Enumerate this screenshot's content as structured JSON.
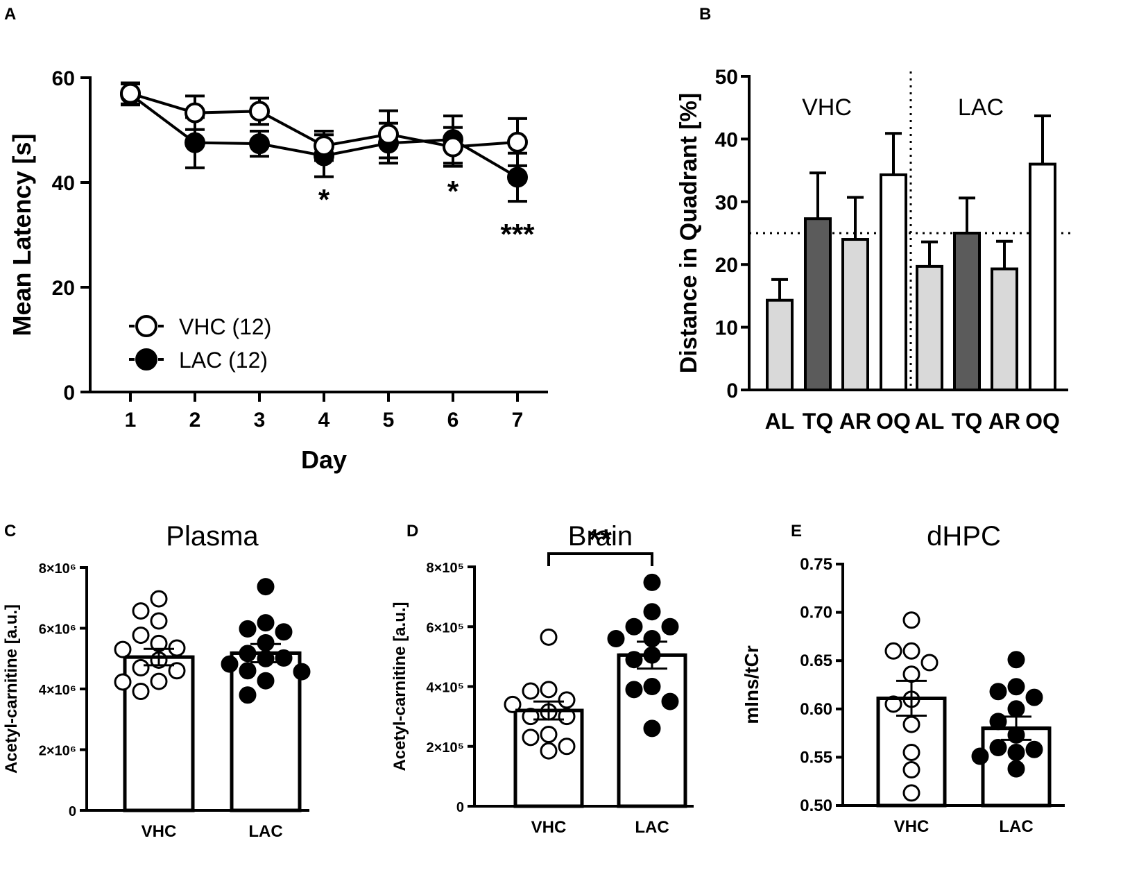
{
  "panel_labels": [
    "A",
    "B",
    "C",
    "D",
    "E"
  ],
  "chart_data": [
    {
      "panel": "A",
      "type": "line",
      "xlabel": "Day",
      "ylabel": "Mean Latency [s]",
      "x": [
        1,
        2,
        3,
        4,
        5,
        6,
        7
      ],
      "x_tick_labels": [
        "1",
        "2",
        "3",
        "4",
        "5",
        "6",
        "7"
      ],
      "ylim": [
        0,
        60
      ],
      "y_ticks": [
        0,
        20,
        40,
        60
      ],
      "y_tick_labels": [
        "0",
        "20",
        "40",
        "60"
      ],
      "series": [
        {
          "name": "VHC (12)",
          "marker": "open-circle",
          "values": [
            57,
            53.3,
            53.6,
            47,
            49.2,
            46.8,
            47.7
          ],
          "errors": [
            2.0,
            3.2,
            2.5,
            2.8,
            4.5,
            3.7,
            4.5
          ]
        },
        {
          "name": "LAC (12)",
          "marker": "filled-circle",
          "values": [
            56.8,
            47.6,
            47.4,
            45.1,
            47.5,
            48.2,
            41.0
          ],
          "errors": [
            2.0,
            4.8,
            2.4,
            4.0,
            3.8,
            4.5,
            4.6
          ]
        }
      ],
      "significance": [
        {
          "x": 4,
          "label": "*"
        },
        {
          "x": 6,
          "label": "*"
        },
        {
          "x": 7,
          "label": "***"
        }
      ]
    },
    {
      "panel": "B",
      "type": "bar",
      "ylabel": "Distance in Quadrant [%]",
      "ylim": [
        0,
        50
      ],
      "y_ticks": [
        0,
        10,
        20,
        30,
        40,
        50
      ],
      "y_tick_labels": [
        "0",
        "10",
        "20",
        "30",
        "40",
        "50"
      ],
      "chance_level": 25,
      "groups": [
        {
          "name": "VHC",
          "categories": [
            "AL",
            "TQ",
            "AR",
            "OQ"
          ],
          "values": [
            14.3,
            27.3,
            24.0,
            34.3
          ],
          "errors": [
            3.3,
            7.3,
            6.7,
            6.6
          ]
        },
        {
          "name": "LAC",
          "categories": [
            "AL",
            "TQ",
            "AR",
            "OQ"
          ],
          "values": [
            19.7,
            25.0,
            19.3,
            36.0
          ],
          "errors": [
            3.9,
            5.6,
            4.4,
            7.7
          ]
        }
      ],
      "bar_colors": {
        "AL": "#d9d9d9",
        "TQ": "#5b5b5b",
        "AR": "#d9d9d9",
        "OQ": "#ffffff"
      }
    },
    {
      "panel": "C",
      "type": "bar",
      "title": "Plasma",
      "ylabel": "Acetyl-carnitine [a.u.]",
      "ylim": [
        0,
        8000000
      ],
      "y_ticks": [
        0,
        2000000,
        4000000,
        6000000,
        8000000
      ],
      "y_tick_labels": [
        "0",
        "2×10⁶",
        "4×10⁶",
        "6×10⁶",
        "8×10⁶"
      ],
      "categories": [
        "VHC",
        "LAC"
      ],
      "means": [
        5050000,
        5180000
      ],
      "sem": [
        270000,
        300000
      ],
      "points": [
        [
          6970000,
          6570000,
          6240000,
          5770000,
          5500000,
          5350000,
          5300000,
          4950000,
          4700000,
          4600000,
          4250000,
          4230000,
          3920000
        ],
        [
          7370000,
          6180000,
          5980000,
          5880000,
          5520000,
          5170000,
          5020000,
          5000000,
          4820000,
          4600000,
          4570000,
          4270000,
          3800000
        ]
      ]
    },
    {
      "panel": "D",
      "type": "bar",
      "title": "Brain",
      "ylabel": "Acetyl-carnitine [a.u.]",
      "ylim": [
        0,
        800000
      ],
      "y_ticks": [
        0,
        200000,
        400000,
        600000,
        800000
      ],
      "y_tick_labels": [
        "0",
        "2×10⁵",
        "4×10⁵",
        "6×10⁵",
        "8×10⁵"
      ],
      "categories": [
        "VHC",
        "LAC"
      ],
      "means": [
        320000,
        505000
      ],
      "sem": [
        30000,
        45000
      ],
      "points": [
        [
          565000,
          390000,
          385000,
          355000,
          340000,
          315000,
          300000,
          300000,
          240000,
          230000,
          200000,
          185000
        ],
        [
          748000,
          650000,
          600000,
          600000,
          560000,
          560000,
          505000,
          490000,
          400000,
          390000,
          350000,
          260000
        ]
      ],
      "significance": [
        {
          "between": [
            "VHC",
            "LAC"
          ],
          "label": "**"
        }
      ]
    },
    {
      "panel": "E",
      "type": "bar",
      "title": "dHPC",
      "ylabel": "mIns/tCr",
      "ylim": [
        0.5,
        0.75
      ],
      "y_ticks": [
        0.5,
        0.55,
        0.6,
        0.65,
        0.7,
        0.75
      ],
      "y_tick_labels": [
        "0.50",
        "0.55",
        "0.60",
        "0.65",
        "0.70",
        "0.75"
      ],
      "categories": [
        "VHC",
        "LAC"
      ],
      "means": [
        0.611,
        0.58
      ],
      "sem": [
        0.018,
        0.012
      ],
      "points": [
        [
          0.692,
          0.66,
          0.66,
          0.648,
          0.636,
          0.61,
          0.605,
          0.584,
          0.555,
          0.537,
          0.513
        ],
        [
          0.651,
          0.623,
          0.618,
          0.612,
          0.6,
          0.587,
          0.573,
          0.56,
          0.558,
          0.555,
          0.551,
          0.538
        ]
      ]
    }
  ]
}
